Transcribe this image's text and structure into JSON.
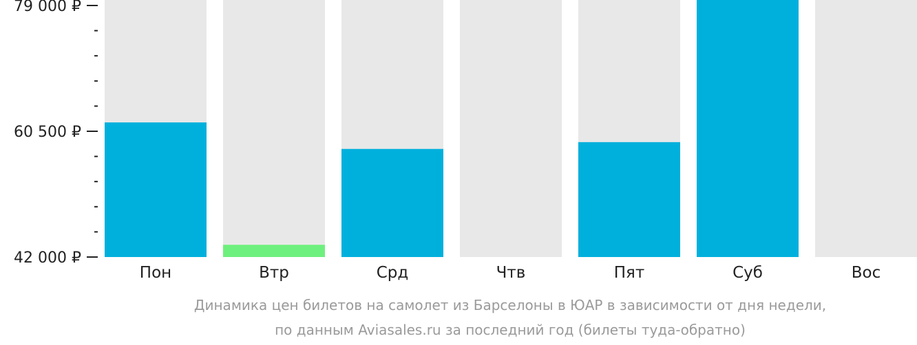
{
  "chart_data": {
    "type": "bar",
    "categories": [
      "Пон",
      "Втр",
      "Срд",
      "Чтв",
      "Пят",
      "Суб",
      "Вос"
    ],
    "values": [
      61800,
      43800,
      57900,
      null,
      58900,
      80000,
      null
    ],
    "highlight_index": 1,
    "ylim": [
      42000,
      79000
    ],
    "yticks": [
      {
        "value": 42000,
        "label": "42 000 ₽"
      },
      {
        "value": 60500,
        "label": "60 500 ₽"
      },
      {
        "value": 79000,
        "label": "79 000 ₽"
      }
    ],
    "minor_ticks_per_interval": 4,
    "colors": {
      "bar": "#00b0dc",
      "bar_highlight": "#6ef07e",
      "background_column": "#e8e8e8",
      "axis": "#222222"
    },
    "caption": {
      "line1": "Динамика цен билетов на самолет из Барселоны в ЮАР в зависимости от дня недели,",
      "line2": "по данным Aviasales.ru за последний год (билеты туда-обратно)"
    }
  }
}
